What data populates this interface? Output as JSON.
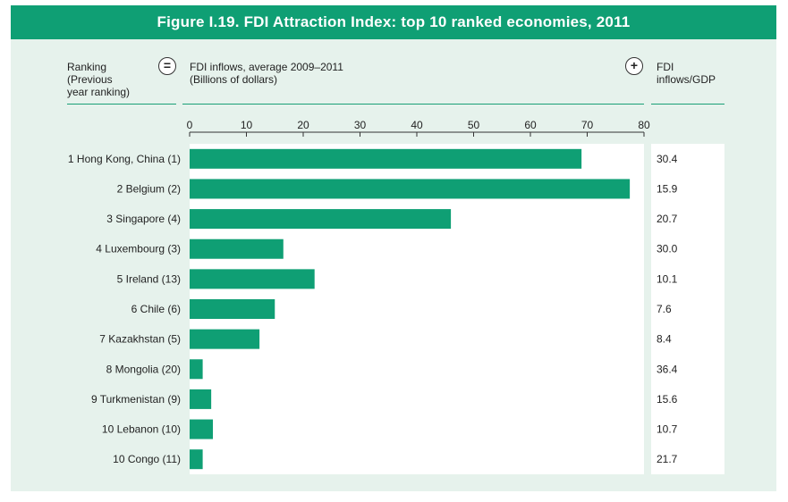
{
  "figure_title": "Figure I.19. FDI Attraction Index: top 10 ranked economies, 2011",
  "headers": {
    "ranking": "Ranking\n(Previous\nyear ranking)",
    "equals_symbol": "=",
    "plus_symbol": "+",
    "inflows": "FDI inflows, average 2009–2011\n(Billions of dollars)",
    "gdp": "FDI\ninflows/GDP"
  },
  "colors": {
    "bar": "#0f9f74",
    "panel": "#e6f2ec",
    "plot_bg": "#ffffff",
    "title_bg": "#0f9f74"
  },
  "chart_data": {
    "type": "bar",
    "orientation": "horizontal",
    "categories": [
      "1 Hong Kong, China (1)",
      "2 Belgium (2)",
      "3 Singapore (4)",
      "4 Luxembourg (3)",
      "5 Ireland (13)",
      "6 Chile (6)",
      "7 Kazakhstan (5)",
      "8 Mongolia (20)",
      "9 Turkmenistan (9)",
      "10 Lebanon (10)",
      "10 Congo (11)"
    ],
    "values": [
      69,
      77.5,
      46,
      16.5,
      22,
      15,
      12.3,
      2.3,
      3.8,
      4.1,
      2.3
    ],
    "xlim": [
      0,
      80
    ],
    "xticks": [
      "0",
      "10",
      "20",
      "30",
      "40",
      "50",
      "60",
      "70",
      "80"
    ],
    "secondary_values": [
      "30.4",
      "15.9",
      "20.7",
      "30.0",
      "10.1",
      "7.6",
      "8.4",
      "36.4",
      "15.6",
      "10.7",
      "21.7"
    ],
    "grid": false
  }
}
